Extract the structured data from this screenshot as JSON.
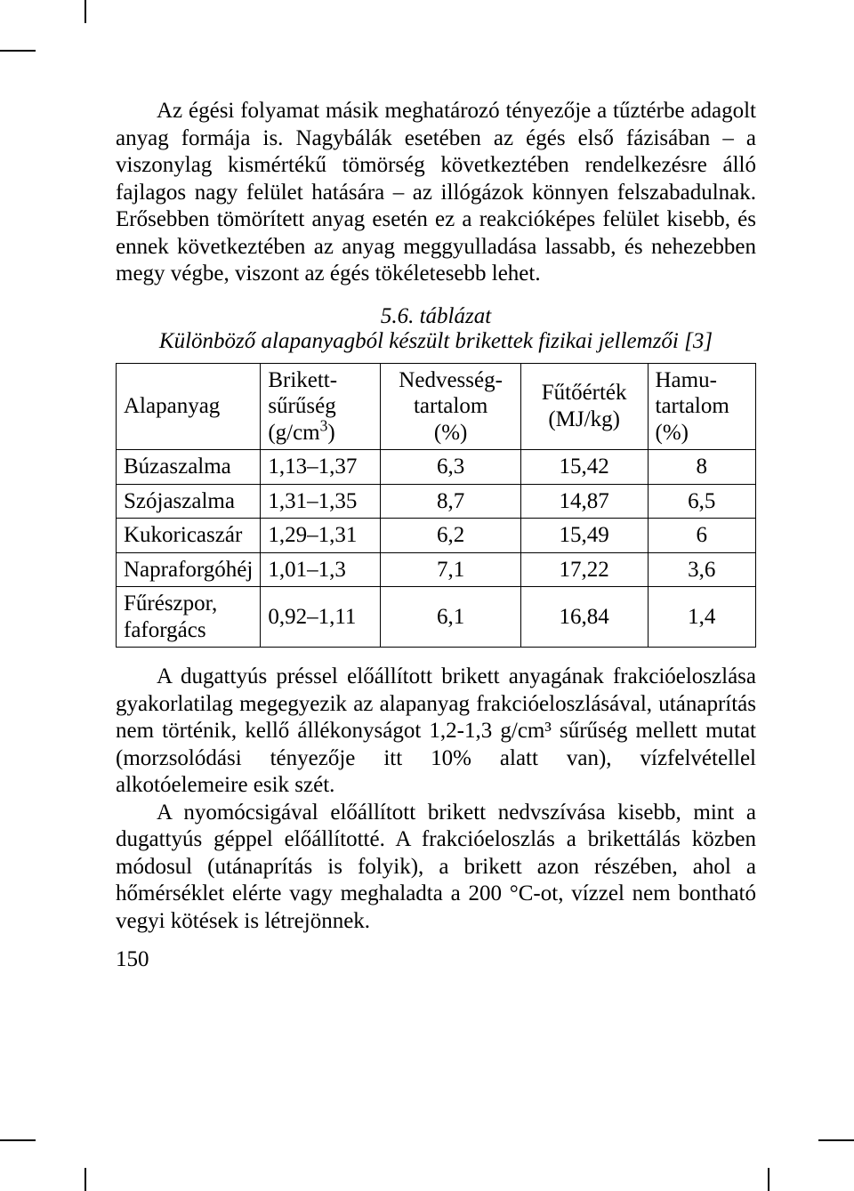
{
  "paragraphs": {
    "p1": "Az égési folyamat másik meghatározó tényezője a tűztérbe adagolt anyag formája is. Nagybálák esetében az égés első fázisában – a viszonylag kismértékű tömörség következtében rendelkezésre álló fajlagos nagy felület hatására – az illógázok könnyen felszabadulnak. Erősebben tömörített anyag esetén ez a reakcióképes felület kisebb, és ennek következtében az anyag meggyulladása lassabb, és nehezebben megy végbe, viszont az égés tökéletesebb lehet.",
    "p2": "A dugattyús préssel előállított brikett anyagának frakcióeloszlása gyakorlatilag megegyezik az alapanyag frakcióeloszlásával, utánaprítás nem történik, kellő állékonyságot 1,2-1,3 g/cm³ sűrűség mellett mutat (morzsolódási tényezője itt 10% alatt van), vízfelvétellel alkotóelemeire esik szét.",
    "p3": "A nyomócsigával előállított brikett nedvszívása kisebb, mint a dugattyús géppel előállítotté. A frakcióeloszlás a brikettálás közben módosul (utánaprítás is folyik), a brikett azon részében, ahol a hőmérséklet elérte vagy meghaladta a 200 °C-ot, vízzel nem bontható vegyi kötések is létrejönnek."
  },
  "table": {
    "caption_num": "5.6. táblázat",
    "caption_text": "Különböző alapanyagból készült brikettek fizikai jellemzői [3]",
    "columns": [
      {
        "label_lines": [
          "Alapanyag"
        ],
        "align": "left"
      },
      {
        "label_lines": [
          "Brikett-",
          "sűrűség",
          "(g/cm³)"
        ],
        "align": "left"
      },
      {
        "label_lines": [
          "Nedvesség-",
          "tartalom",
          "(%)"
        ],
        "align": "center"
      },
      {
        "label_lines": [
          "Fűtőérték",
          "(MJ/kg)"
        ],
        "align": "center"
      },
      {
        "label_lines": [
          "Hamu-",
          "tartalom",
          "(%)"
        ],
        "align": "left"
      }
    ],
    "rows": [
      {
        "material": "Búzaszalma",
        "density": "1,13–1,37",
        "moisture": "6,3",
        "heating": "15,42",
        "ash": "8"
      },
      {
        "material": "Szójaszalma",
        "density": "1,31–1,35",
        "moisture": "8,7",
        "heating": "14,87",
        "ash": "6,5"
      },
      {
        "material": "Kukoricaszár",
        "density": "1,29–1,31",
        "moisture": "6,2",
        "heating": "15,49",
        "ash": "6"
      },
      {
        "material": "Napraforgóhéj",
        "density": "1,01–1,3",
        "moisture": "7,1",
        "heating": "17,22",
        "ash": "3,6"
      },
      {
        "material": "Fűrészpor, faforgács",
        "density": "0,92–1,11",
        "moisture": "6,1",
        "heating": "16,84",
        "ash": "1,4"
      }
    ],
    "col_widths_pct": [
      22,
      19,
      22,
      20,
      17
    ]
  },
  "page_number": "150",
  "style": {
    "font_size_pt": 25,
    "text_color": "#000000",
    "background_color": "#ffffff",
    "table_border_color": "#000000"
  }
}
